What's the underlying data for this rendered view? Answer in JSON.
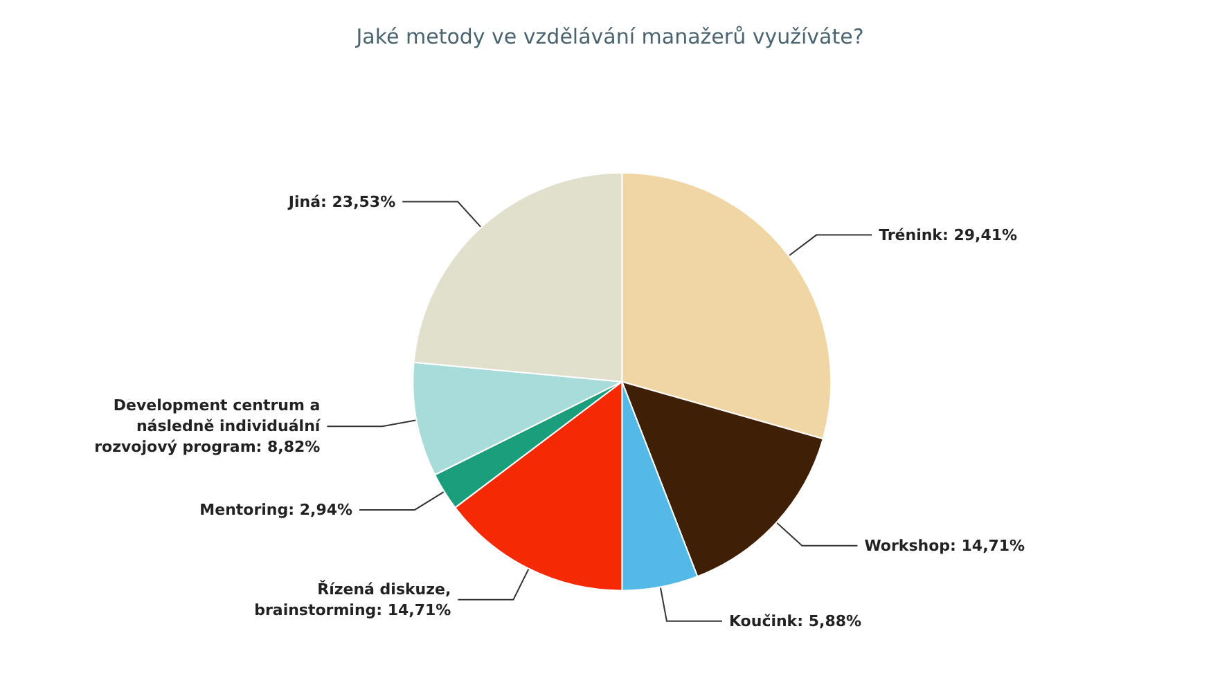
{
  "chart_data": {
    "type": "pie",
    "title": "Jaké metody ve vzdělávání manažerů využíváte?",
    "categories": [
      "Trénink",
      "Workshop",
      "Koučink",
      "Řízená diskuze, brainstorming",
      "Mentoring",
      "Development centrum a následně individuální rozvojový program",
      "Jiná"
    ],
    "values": [
      29.41,
      14.71,
      5.88,
      14.71,
      2.94,
      8.82,
      23.53
    ],
    "value_labels": [
      "29,41%",
      "14,71%",
      "5,88%",
      "14,71%",
      "2,94%",
      "8,82%",
      "23,53%"
    ],
    "colors": [
      "#f0d5a5",
      "#3f1f05",
      "#55b9e8",
      "#f52a05",
      "#1a9e7c",
      "#a7dcdb",
      "#e0e0cc"
    ],
    "legend": false
  }
}
